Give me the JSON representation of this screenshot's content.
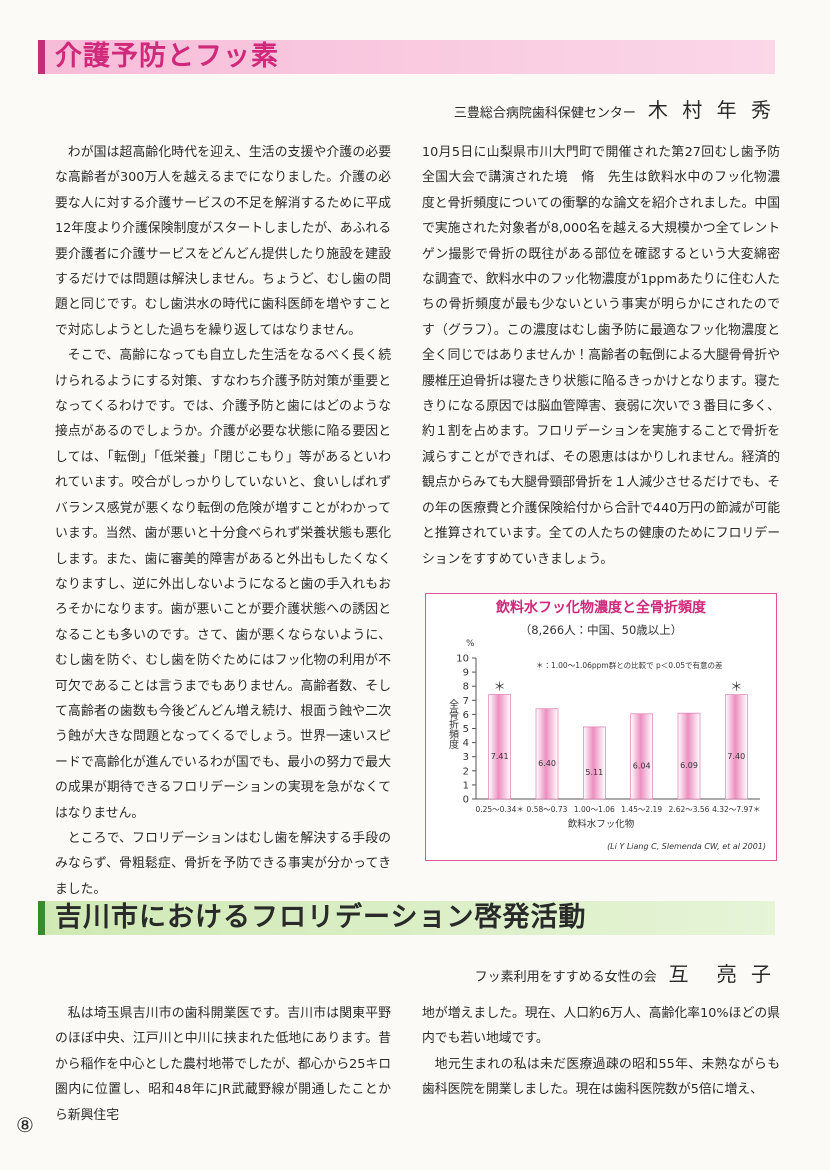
{
  "page_number": "⑧",
  "article1": {
    "title": "介護予防とフッ素",
    "affiliation": "三豊総合病院歯科保健センター",
    "author": "木 村 年 秀",
    "left_paragraphs": [
      "わが国は超高齢化時代を迎え、生活の支援や介護の必要な高齢者が300万人を越えるまでになりました。介護の必要な人に対する介護サービスの不足を解消するために平成12年度より介護保険制度がスタートしましたが、あふれる要介護者に介護サービスをどんどん提供したり施設を建設するだけでは問題は解決しません。ちょうど、むし歯の問題と同じです。むし歯洪水の時代に歯科医師を増やすことで対応しようとした過ちを繰り返してはなりません。",
      "そこで、高齢になっても自立した生活をなるべく長く続けられるようにする対策、すなわち介護予防対策が重要となってくるわけです。では、介護予防と歯にはどのような接点があるのでしょうか。介護が必要な状態に陥る要因としては、「転倒」「低栄養」「閉じこもり」等があるといわれています。咬合がしっかりしていないと、食いしばれずバランス感覚が悪くなり転倒の危険が増すことがわかっています。当然、歯が悪いと十分食べられず栄養状態も悪化します。また、歯に審美的障害があると外出もしたくなくなりますし、逆に外出しないようになると歯の手入れもおろそかになります。歯が悪いことが要介護状態への誘因となることも多いのです。さて、歯が悪くならないように、むし歯を防ぐ、むし歯を防ぐためにはフッ化物の利用が不可欠であることは言うまでもありません。高齢者数、そして高齢者の歯数も今後どんどん増え続け、根面う蝕や二次う蝕が大きな問題となってくるでしょう。世界一速いスピードで高齢化が進んでいるわが国でも、最小の努力で最大の成果が期待できるフロリデーションの実現を急がなくてはなりません。",
      "ところで、フロリデーションはむし歯を解決する手段のみならず、骨粗鬆症、骨折を予防できる事実が分かってきました。"
    ],
    "right_paragraphs": [
      "10月5日に山梨県市川大門町で開催された第27回むし歯予防全国大会で講演された境　脩　先生は飲料水中のフッ化物濃度と骨折頻度についての衝撃的な論文を紹介されました。中国で実施された対象者が8,000名を越える大規模かつ全てレントゲン撮影で骨折の既往がある部位を確認するという大変綿密な調査で、飲料水中のフッ化物濃度が1ppmあたりに住む人たちの骨折頻度が最も少ないという事実が明らかにされたのです（グラフ）。この濃度はむし歯予防に最適なフッ化物濃度と全く同じではありませんか！高齢者の転倒による大腿骨骨折や腰椎圧迫骨折は寝たきり状態に陥るきっかけとなります。寝たきりになる原因では脳血管障害、衰弱に次いで３番目に多く、約１割を占めます。フロリデーションを実施することで骨折を減らすことができれば、その恩恵ははかりしれません。経済的観点からみても大腿骨頸部骨折を１人減少させるだけでも、その年の医療費と介護保険給付から合計で440万円の節減が可能と推算されています。全ての人たちの健康のためにフロリデーションをすすめていきましょう。"
    ]
  },
  "chart_data": {
    "type": "bar",
    "title": "飲料水フッ化物濃度と全骨折頻度",
    "subtitle": "（8,266人：中国、50歳以上）",
    "note": "＊：1.00～1.06ppm群との比較で p＜0.05で有意の差",
    "y_unit": "%",
    "ylabel": "全骨折頻度",
    "xlabel": "飲料水フッ化物",
    "source": "(Li Y Liang C, Slemenda CW, et al 2001)",
    "categories": [
      "0.25～0.34＊",
      "0.58～0.73",
      "1.00～1.06",
      "1.45～2.19",
      "2.62～3.56",
      "4.32～7.97＊"
    ],
    "values": [
      7.41,
      6.4,
      5.11,
      6.04,
      6.09,
      7.4
    ],
    "value_labels": [
      "7.41",
      "6.40",
      "5.11",
      "6.04",
      "6.09",
      "7.40"
    ],
    "significance_marks": [
      "＊",
      null,
      null,
      null,
      null,
      "＊"
    ],
    "color": "#ec8fc0",
    "ylim": [
      0,
      10
    ],
    "yticks": [
      0,
      1,
      2,
      3,
      4,
      5,
      6,
      7,
      8,
      9,
      10
    ]
  },
  "article2": {
    "title": "吉川市におけるフロリデーション啓発活動",
    "affiliation": "フッ素利用をすすめる女性の会",
    "author": "互　亮 子",
    "left_paragraphs": [
      "私は埼玉県吉川市の歯科開業医です。吉川市は関東平野のほぼ中央、江戸川と中川に挟まれた低地にあります。昔から稲作を中心とした農村地帯でしたが、都心から25キロ圏内に位置し、昭和48年にJR武蔵野線が開通したことから新興住宅"
    ],
    "right_paragraphs": [
      "地が増えました。現在、人口約6万人、高齢化率10%ほどの県内でも若い地域です。",
      "地元生まれの私は未だ医療過疎の昭和55年、未熟ながらも歯科医院を開業しました。現在は歯科医院数が5倍に増え、"
    ]
  }
}
